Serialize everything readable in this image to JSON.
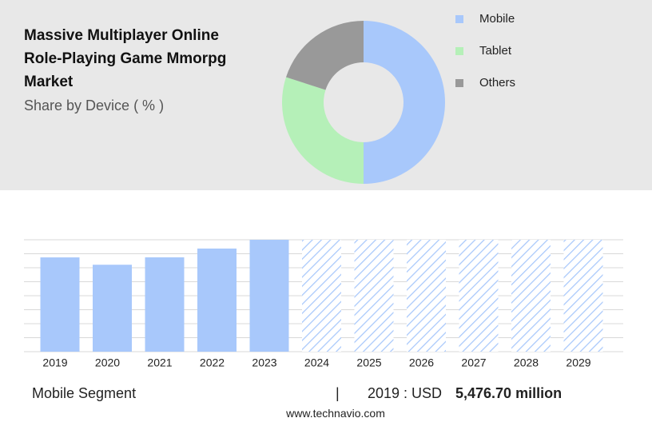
{
  "chart_data": [
    {
      "type": "pie",
      "title": "Massive Multiplayer Online Role-Playing Game Mmorpg Market",
      "subtitle": "Share by Device ( % )",
      "categories": [
        "Mobile",
        "Tablet",
        "Others"
      ],
      "values": [
        50,
        30,
        20
      ],
      "colors": [
        "#a8c8fb",
        "#b5f0b8",
        "#999999"
      ]
    },
    {
      "type": "bar",
      "categories": [
        "2019",
        "2020",
        "2021",
        "2022",
        "2023",
        "2024",
        "2025",
        "2026",
        "2027",
        "2028",
        "2029"
      ],
      "values": [
        5476.7,
        5050,
        5480,
        5990,
        6500,
        null,
        null,
        null,
        null,
        null,
        null
      ],
      "color": "#a8c8fb",
      "ylim": [
        0,
        6500
      ],
      "grid": true
    }
  ],
  "footer": {
    "segment": "Mobile Segment",
    "separator": "|",
    "year_label": "2019 : USD",
    "value_label": "5,476.70 million",
    "source": "www.technavio.com"
  }
}
